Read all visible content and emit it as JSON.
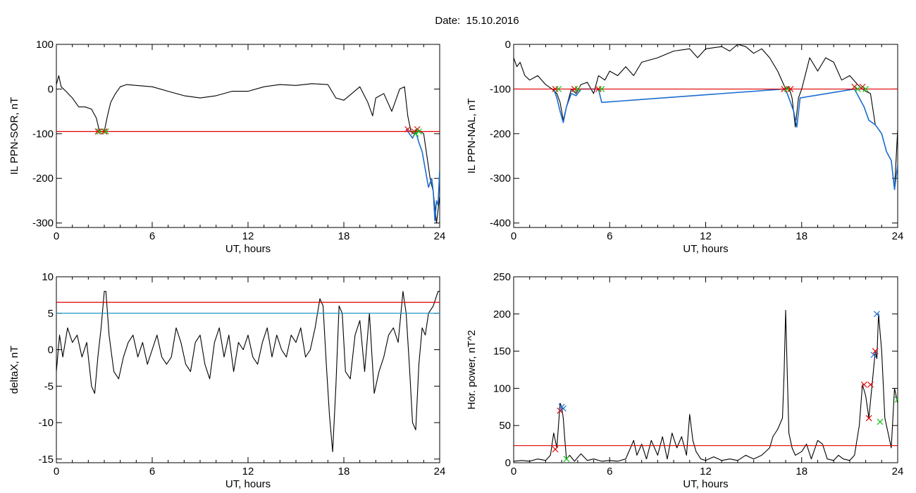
{
  "header": {
    "date_label": "Date:  15.10.2016"
  },
  "colors": {
    "black": "#000000",
    "red": "#e00000",
    "blue": "#1c6dd0",
    "green": "#10c010",
    "cyan_line": "#1e96c8"
  },
  "chart_data": [
    {
      "id": "sor",
      "type": "line",
      "ylabel": "IL PPN-SOR, nT",
      "xlabel": "UT, hours",
      "xlim": [
        0,
        24
      ],
      "ylim": [
        -310,
        100
      ],
      "xticks": [
        0,
        6,
        12,
        18,
        24
      ],
      "yticks": [
        100,
        0,
        -100,
        -200,
        -300
      ],
      "series": [
        {
          "color": "black",
          "x": [
            0,
            0.15,
            0.3,
            0.6,
            1.0,
            1.4,
            1.8,
            2.2,
            2.5,
            2.7,
            2.9,
            3.0,
            3.2,
            3.4,
            3.7,
            4.0,
            4.4,
            5,
            6,
            7,
            8,
            9,
            10,
            11,
            12,
            13,
            14,
            15,
            16,
            17,
            17.5,
            18,
            18.5,
            19,
            19.5,
            19.8,
            20,
            20.5,
            21,
            21.5,
            21.8,
            22.0,
            22.2,
            22.4,
            22.6,
            22.8,
            23.0,
            23.2,
            23.4,
            23.6,
            23.8,
            24.0
          ],
          "y": [
            10,
            30,
            5,
            -5,
            -20,
            -40,
            -40,
            -45,
            -65,
            -95,
            -95,
            -95,
            -60,
            -30,
            -10,
            5,
            10,
            8,
            5,
            -5,
            -15,
            -20,
            -15,
            -5,
            -5,
            5,
            10,
            8,
            12,
            10,
            -20,
            -25,
            -10,
            5,
            -30,
            -60,
            -20,
            -10,
            -50,
            0,
            5,
            -60,
            -95,
            -100,
            -90,
            -95,
            -100,
            -150,
            -200,
            -230,
            -300,
            -240
          ]
        },
        {
          "color": "blue",
          "x": [
            21.9,
            22.1,
            22.3,
            22.5,
            22.7,
            22.9,
            23.1,
            23.3,
            23.5,
            23.6,
            23.7,
            23.8,
            23.9,
            24.0
          ],
          "y": [
            -90,
            -100,
            -110,
            -95,
            -120,
            -140,
            -180,
            -220,
            -200,
            -230,
            -295,
            -250,
            -260,
            -180
          ]
        }
      ],
      "hlines": [
        {
          "y": -95,
          "color": "red"
        }
      ],
      "markers": [
        {
          "x": 2.6,
          "y": -95,
          "color": "red"
        },
        {
          "x": 2.7,
          "y": -95,
          "color": "green"
        },
        {
          "x": 3.0,
          "y": -95,
          "color": "red"
        },
        {
          "x": 3.1,
          "y": -95,
          "color": "green"
        },
        {
          "x": 22.0,
          "y": -90,
          "color": "red"
        },
        {
          "x": 22.4,
          "y": -95,
          "color": "red"
        },
        {
          "x": 22.6,
          "y": -90,
          "color": "red"
        },
        {
          "x": 22.5,
          "y": -100,
          "color": "green"
        },
        {
          "x": 22.7,
          "y": -95,
          "color": "green"
        }
      ]
    },
    {
      "id": "nal",
      "type": "line",
      "ylabel": "IL PPN-NAL, nT",
      "xlabel": "UT, hours",
      "xlim": [
        0,
        24
      ],
      "ylim": [
        -410,
        0
      ],
      "xticks": [
        0,
        6,
        12,
        18,
        24
      ],
      "yticks": [
        0,
        -100,
        -200,
        -300,
        -400
      ],
      "series": [
        {
          "color": "black",
          "x": [
            0,
            0.2,
            0.4,
            0.7,
            1.0,
            1.5,
            2.0,
            2.4,
            2.7,
            2.9,
            3.1,
            3.3,
            3.6,
            3.9,
            4.2,
            4.6,
            5.0,
            5.3,
            5.7,
            6,
            6.5,
            7,
            7.5,
            8,
            9,
            10,
            11,
            11.5,
            12,
            13,
            13.5,
            14,
            14.5,
            15,
            15.5,
            16,
            16.5,
            17,
            17.2,
            17.4,
            17.6,
            17.8,
            18,
            18.5,
            19,
            19.5,
            20,
            20.5,
            21,
            21.5,
            21.8,
            22,
            22.3,
            22.6,
            23,
            23.3,
            23.6,
            23.8,
            24
          ],
          "y": [
            -30,
            -50,
            -40,
            -70,
            -80,
            -70,
            -90,
            -100,
            -110,
            -130,
            -170,
            -140,
            -100,
            -110,
            -90,
            -85,
            -110,
            -70,
            -80,
            -60,
            -70,
            -50,
            -70,
            -40,
            -30,
            -15,
            -10,
            -30,
            -10,
            -5,
            -15,
            0,
            -5,
            -20,
            -10,
            -30,
            -60,
            -100,
            -95,
            -120,
            -185,
            -120,
            -100,
            -30,
            -60,
            -30,
            -40,
            -80,
            -70,
            -90,
            -100,
            -105,
            -110,
            -180,
            -200,
            -240,
            -260,
            -325,
            -190
          ]
        },
        {
          "color": "blue",
          "x": [
            2.5,
            2.7,
            2.9,
            3.1,
            3.3,
            3.6,
            3.9,
            4.2,
            5.3,
            5.5,
            16.9,
            17.1,
            17.3,
            17.5,
            17.7,
            17.9,
            21.3,
            21.6,
            21.9,
            22.2,
            22.6,
            23.0,
            23.3,
            23.6,
            23.8,
            24.0
          ],
          "y": [
            -100,
            -120,
            -150,
            -175,
            -140,
            -110,
            -115,
            -100,
            -100,
            -130,
            -100,
            -110,
            -130,
            -150,
            -185,
            -120,
            -100,
            -120,
            -140,
            -170,
            -180,
            -200,
            -240,
            -260,
            -325,
            -270
          ]
        }
      ],
      "hlines": [
        {
          "y": -100,
          "color": "red"
        }
      ],
      "markers": [
        {
          "x": 2.6,
          "y": -100,
          "color": "red"
        },
        {
          "x": 2.8,
          "y": -100,
          "color": "green"
        },
        {
          "x": 3.8,
          "y": -100,
          "color": "red"
        },
        {
          "x": 4.0,
          "y": -100,
          "color": "green"
        },
        {
          "x": 5.3,
          "y": -100,
          "color": "red"
        },
        {
          "x": 5.5,
          "y": -100,
          "color": "green"
        },
        {
          "x": 16.9,
          "y": -100,
          "color": "red"
        },
        {
          "x": 17.1,
          "y": -100,
          "color": "green"
        },
        {
          "x": 17.3,
          "y": -100,
          "color": "red"
        },
        {
          "x": 21.3,
          "y": -95,
          "color": "red"
        },
        {
          "x": 21.5,
          "y": -100,
          "color": "green"
        },
        {
          "x": 21.8,
          "y": -95,
          "color": "red"
        },
        {
          "x": 22.0,
          "y": -100,
          "color": "green"
        }
      ]
    },
    {
      "id": "deltax",
      "type": "line",
      "ylabel": "deltaX, nT",
      "xlabel": "UT, hours",
      "xlim": [
        0,
        24
      ],
      "ylim": [
        -15.5,
        10
      ],
      "xticks": [
        0,
        6,
        12,
        18,
        24
      ],
      "yticks": [
        10,
        5,
        0,
        -5,
        -10,
        -15
      ],
      "series": [
        {
          "color": "black",
          "x": [
            0,
            0.2,
            0.4,
            0.7,
            1.0,
            1.3,
            1.6,
            1.9,
            2.2,
            2.4,
            2.6,
            2.8,
            3.0,
            3.1,
            3.3,
            3.6,
            3.9,
            4.2,
            4.5,
            4.8,
            5.1,
            5.4,
            5.7,
            6.0,
            6.3,
            6.6,
            6.9,
            7.2,
            7.5,
            7.8,
            8.1,
            8.4,
            8.7,
            9.0,
            9.3,
            9.6,
            9.9,
            10.2,
            10.5,
            10.8,
            11.1,
            11.4,
            11.7,
            12.0,
            12.3,
            12.6,
            12.9,
            13.2,
            13.5,
            13.8,
            14.1,
            14.4,
            14.7,
            15.0,
            15.3,
            15.6,
            15.9,
            16.2,
            16.5,
            16.7,
            16.9,
            17.1,
            17.3,
            17.5,
            17.7,
            17.9,
            18.1,
            18.4,
            18.7,
            19.0,
            19.3,
            19.6,
            19.9,
            20.2,
            20.5,
            20.8,
            21.1,
            21.4,
            21.7,
            21.9,
            22.1,
            22.3,
            22.5,
            22.7,
            22.9,
            23.1,
            23.3,
            23.6,
            23.9,
            24.0
          ],
          "y": [
            -3,
            2,
            -1,
            3,
            1,
            2,
            -1,
            1,
            -5,
            -6,
            -1,
            3,
            8,
            8,
            2,
            -3,
            -4,
            -1,
            1,
            2,
            -1,
            1,
            -2,
            0,
            2,
            -1,
            -2,
            -1,
            3,
            1,
            -2,
            -3,
            1,
            2,
            -2,
            -4,
            1,
            3,
            -1,
            2,
            -3,
            1,
            0,
            2,
            -1,
            -2,
            1,
            3,
            -1,
            2,
            0,
            -1,
            2,
            1,
            3,
            -1,
            0,
            3,
            7,
            6,
            -2,
            -9,
            -14,
            -5,
            6,
            5,
            -3,
            -4,
            2,
            4,
            -3,
            5,
            -6,
            -3,
            -1,
            2,
            3,
            1,
            8,
            5,
            -2,
            -10,
            -11,
            -2,
            3,
            2,
            5,
            6,
            8,
            8
          ]
        }
      ],
      "hlines": [
        {
          "y": 6.5,
          "color": "red"
        },
        {
          "y": 5.0,
          "color": "cyan_line"
        }
      ],
      "markers": []
    },
    {
      "id": "power",
      "type": "line",
      "ylabel": "Hor. power, nT^2",
      "xlabel": "UT, hours",
      "xlim": [
        0,
        24
      ],
      "ylim": [
        0,
        250
      ],
      "xticks": [
        0,
        6,
        12,
        18,
        24
      ],
      "yticks": [
        250,
        200,
        150,
        100,
        50,
        0
      ],
      "series": [
        {
          "color": "black",
          "x": [
            0,
            0.5,
            1.0,
            1.5,
            2.0,
            2.3,
            2.5,
            2.7,
            2.9,
            3.0,
            3.1,
            3.2,
            3.3,
            3.5,
            3.8,
            4.2,
            4.6,
            5.0,
            5.5,
            6.0,
            6.5,
            7.0,
            7.3,
            7.5,
            7.7,
            8.0,
            8.3,
            8.6,
            9.0,
            9.3,
            9.6,
            9.9,
            10.2,
            10.5,
            10.8,
            11.0,
            11.2,
            11.4,
            11.7,
            12.0,
            12.5,
            13.0,
            13.5,
            14.0,
            14.5,
            15.0,
            15.5,
            16.0,
            16.2,
            16.5,
            16.8,
            16.9,
            17.0,
            17.1,
            17.2,
            17.4,
            17.6,
            18.0,
            18.3,
            18.6,
            19.0,
            19.3,
            19.6,
            20.0,
            20.3,
            20.6,
            21.0,
            21.3,
            21.6,
            21.8,
            22.0,
            22.2,
            22.4,
            22.6,
            22.7,
            22.8,
            23.0,
            23.2,
            23.4,
            23.6,
            23.8,
            24.0
          ],
          "y": [
            2,
            3,
            2,
            5,
            3,
            10,
            40,
            20,
            80,
            75,
            60,
            30,
            5,
            10,
            2,
            12,
            3,
            5,
            2,
            3,
            2,
            5,
            20,
            30,
            10,
            25,
            5,
            30,
            10,
            35,
            5,
            40,
            20,
            35,
            10,
            65,
            30,
            15,
            5,
            3,
            8,
            3,
            5,
            3,
            10,
            5,
            10,
            20,
            35,
            45,
            60,
            120,
            205,
            120,
            40,
            20,
            10,
            15,
            25,
            5,
            30,
            25,
            5,
            3,
            10,
            5,
            3,
            10,
            50,
            105,
            90,
            60,
            105,
            150,
            140,
            200,
            150,
            60,
            40,
            20,
            100,
            80
          ]
        }
      ],
      "hlines": [
        {
          "y": 23,
          "color": "red"
        }
      ],
      "markers": [
        {
          "x": 2.6,
          "y": 18,
          "color": "red"
        },
        {
          "x": 2.9,
          "y": 70,
          "color": "red"
        },
        {
          "x": 3.0,
          "y": 75,
          "color": "blue"
        },
        {
          "x": 3.1,
          "y": 73,
          "color": "blue"
        },
        {
          "x": 3.3,
          "y": 5,
          "color": "green"
        },
        {
          "x": 21.9,
          "y": 105,
          "color": "red"
        },
        {
          "x": 22.3,
          "y": 105,
          "color": "red"
        },
        {
          "x": 22.2,
          "y": 60,
          "color": "red"
        },
        {
          "x": 22.6,
          "y": 150,
          "color": "red"
        },
        {
          "x": 22.5,
          "y": 145,
          "color": "blue"
        },
        {
          "x": 22.7,
          "y": 200,
          "color": "blue"
        },
        {
          "x": 22.9,
          "y": 55,
          "color": "green"
        },
        {
          "x": 24.0,
          "y": 85,
          "color": "green"
        }
      ]
    }
  ]
}
